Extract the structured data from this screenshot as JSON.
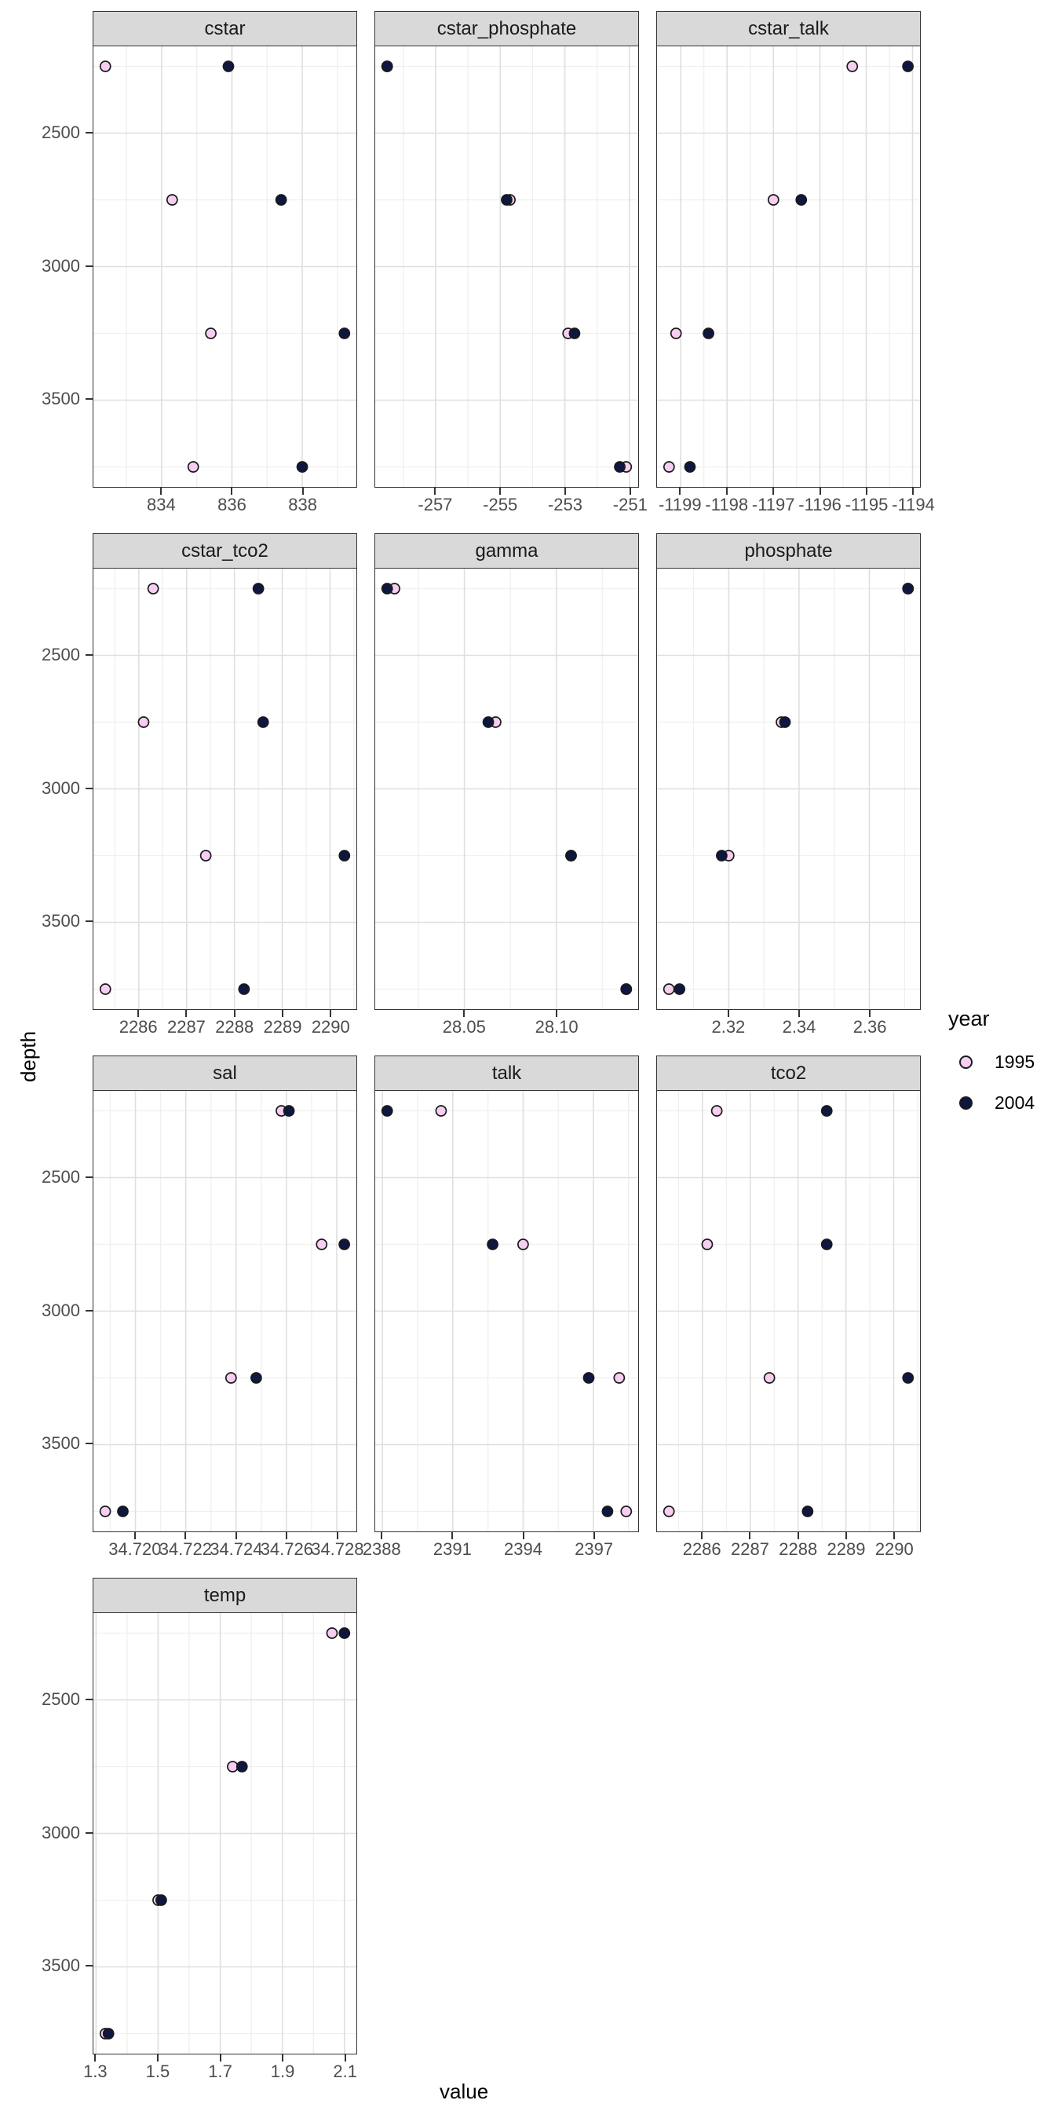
{
  "axis": {
    "x_label": "value",
    "y_label": "depth"
  },
  "legend": {
    "title": "year",
    "items": [
      {
        "label": "1995",
        "fill": "#F7CEF2"
      },
      {
        "label": "2004",
        "fill": "#0D173F"
      }
    ]
  },
  "style": {
    "point_stroke": "#1A1A1A",
    "strip_bg": "#D9D9D9",
    "panel_border": "#333333",
    "grid_major": "#DFDFDF",
    "grid_minor": "#EFEFEF",
    "tick_label_color": "#4D4D4D",
    "tick_mark_color": "#333333"
  },
  "chart_data": {
    "type": "scatter",
    "title": "",
    "xlabel": "value",
    "ylabel": "depth",
    "legend_position": "right",
    "grid": "on",
    "y_axis": {
      "reversed": true,
      "range": [
        2175,
        3825
      ],
      "ticks": {
        "values": [
          2500,
          3000,
          3500
        ],
        "labels": [
          "2500",
          "3000",
          "3500"
        ]
      },
      "minor": [
        2250,
        2750,
        3250,
        3750
      ]
    },
    "series_names": [
      "1995",
      "2004"
    ],
    "rows": [
      [
        "cstar",
        "cstar_phosphate",
        "cstar_talk"
      ],
      [
        "cstar_tco2",
        "gamma",
        "phosphate"
      ],
      [
        "sal",
        "talk",
        "tco2"
      ],
      [
        "temp"
      ]
    ],
    "facets": [
      {
        "name": "cstar",
        "x_range": [
          832.06,
          839.54
        ],
        "x_ticks": {
          "values": [
            834,
            836,
            838
          ],
          "labels": [
            "834",
            "836",
            "838"
          ]
        },
        "series": {
          "1995": [
            [
              832.4,
              2250
            ],
            [
              834.3,
              2750
            ],
            [
              835.4,
              3250
            ],
            [
              834.9,
              3750
            ]
          ],
          "2004": [
            [
              835.9,
              2250
            ],
            [
              837.4,
              2750
            ],
            [
              839.2,
              3250
            ],
            [
              838.0,
              3750
            ]
          ]
        }
      },
      {
        "name": "cstar_phosphate",
        "x_range": [
          -258.87,
          -250.73
        ],
        "x_ticks": {
          "values": [
            -257,
            -255,
            -253,
            -251
          ],
          "labels": [
            "-257",
            "-255",
            "-253",
            "-251"
          ]
        },
        "series": {
          "1995": [
            [
              -258.5,
              2250
            ],
            [
              -254.7,
              2750
            ],
            [
              -252.9,
              3250
            ],
            [
              -251.1,
              3750
            ]
          ],
          "2004": [
            [
              -258.5,
              2250
            ],
            [
              -254.8,
              2750
            ],
            [
              -252.7,
              3250
            ],
            [
              -251.3,
              3750
            ]
          ]
        }
      },
      {
        "name": "cstar_talk",
        "x_range": [
          -1199.51,
          -1193.84
        ],
        "x_ticks": {
          "values": [
            -1199,
            -1198,
            -1197,
            -1196,
            -1195,
            -1194
          ],
          "labels": [
            "-1199",
            "-1198",
            "-1197",
            "-1196",
            "-1195",
            "-1194"
          ]
        },
        "series": {
          "1995": [
            [
              -1195.3,
              2250
            ],
            [
              -1197.0,
              2750
            ],
            [
              -1199.1,
              3250
            ],
            [
              -1199.25,
              3750
            ]
          ],
          "2004": [
            [
              -1194.1,
              2250
            ],
            [
              -1196.4,
              2750
            ],
            [
              -1198.4,
              3250
            ],
            [
              -1198.8,
              3750
            ]
          ]
        }
      },
      {
        "name": "cstar_tco2",
        "x_range": [
          2285.05,
          2290.55
        ],
        "x_ticks": {
          "values": [
            2286,
            2287,
            2288,
            2289,
            2290
          ],
          "labels": [
            "2286",
            "2287",
            "2288",
            "2289",
            "2290"
          ]
        },
        "series": {
          "1995": [
            [
              2286.3,
              2250
            ],
            [
              2286.1,
              2750
            ],
            [
              2287.4,
              3250
            ],
            [
              2285.3,
              3750
            ]
          ],
          "2004": [
            [
              2288.5,
              2250
            ],
            [
              2288.6,
              2750
            ],
            [
              2290.3,
              3250
            ],
            [
              2288.2,
              3750
            ]
          ]
        }
      },
      {
        "name": "gamma",
        "x_range": [
          28.0015,
          28.1445
        ],
        "x_ticks": {
          "values": [
            28.05,
            28.1
          ],
          "labels": [
            "28.05",
            "28.10"
          ]
        },
        "series": {
          "1995": [
            [
              28.012,
              2250
            ],
            [
              28.067,
              2750
            ],
            [
              28.108,
              3250
            ],
            [
              28.138,
              3750
            ]
          ],
          "2004": [
            [
              28.008,
              2250
            ],
            [
              28.063,
              2750
            ],
            [
              28.108,
              3250
            ],
            [
              28.138,
              3750
            ]
          ]
        }
      },
      {
        "name": "phosphate",
        "x_range": [
          2.2996,
          2.3744
        ],
        "x_ticks": {
          "values": [
            2.32,
            2.34,
            2.36
          ],
          "labels": [
            "2.32",
            "2.34",
            "2.36"
          ]
        },
        "series": {
          "1995": [
            [
              2.371,
              2250
            ],
            [
              2.335,
              2750
            ],
            [
              2.32,
              3250
            ],
            [
              2.303,
              3750
            ]
          ],
          "2004": [
            [
              2.371,
              2250
            ],
            [
              2.336,
              2750
            ],
            [
              2.318,
              3250
            ],
            [
              2.306,
              3750
            ]
          ]
        }
      },
      {
        "name": "sal",
        "x_range": [
          34.71833,
          34.72878
        ],
        "x_ticks": {
          "values": [
            34.72,
            34.722,
            34.724,
            34.726,
            34.728
          ],
          "labels": [
            "34.720",
            "34.722",
            "34.724",
            "34.726",
            "34.728"
          ]
        },
        "series": {
          "1995": [
            [
              34.7258,
              2250
            ],
            [
              34.7274,
              2750
            ],
            [
              34.7238,
              3250
            ],
            [
              34.7188,
              3750
            ]
          ],
          "2004": [
            [
              34.7261,
              2250
            ],
            [
              34.7283,
              2750
            ],
            [
              34.7248,
              3250
            ],
            [
              34.7195,
              3750
            ]
          ]
        }
      },
      {
        "name": "talk",
        "x_range": [
          2387.69,
          2398.91
        ],
        "x_ticks": {
          "values": [
            2388,
            2391,
            2394,
            2397
          ],
          "labels": [
            "2388",
            "2391",
            "2394",
            "2397"
          ]
        },
        "series": {
          "1995": [
            [
              2390.5,
              2250
            ],
            [
              2394.0,
              2750
            ],
            [
              2398.1,
              3250
            ],
            [
              2398.4,
              3750
            ]
          ],
          "2004": [
            [
              2388.2,
              2250
            ],
            [
              2392.7,
              2750
            ],
            [
              2396.8,
              3250
            ],
            [
              2397.6,
              3750
            ]
          ]
        }
      },
      {
        "name": "tco2",
        "x_range": [
          2285.05,
          2290.55
        ],
        "x_ticks": {
          "values": [
            2286,
            2287,
            2288,
            2289,
            2290
          ],
          "labels": [
            "2286",
            "2287",
            "2288",
            "2289",
            "2290"
          ]
        },
        "series": {
          "1995": [
            [
              2286.3,
              2250
            ],
            [
              2286.1,
              2750
            ],
            [
              2287.4,
              3250
            ],
            [
              2285.3,
              3750
            ]
          ],
          "2004": [
            [
              2288.6,
              2250
            ],
            [
              2288.6,
              2750
            ],
            [
              2290.3,
              3250
            ],
            [
              2288.2,
              3750
            ]
          ]
        }
      },
      {
        "name": "temp",
        "x_range": [
          1.2915,
          2.1385
        ],
        "x_ticks": {
          "values": [
            1.3,
            1.5,
            1.7,
            1.9,
            2.1
          ],
          "labels": [
            "1.3",
            "1.5",
            "1.7",
            "1.9",
            "2.1"
          ]
        },
        "series": {
          "1995": [
            [
              2.06,
              2250
            ],
            [
              1.74,
              2750
            ],
            [
              1.5,
              3250
            ],
            [
              1.33,
              3750
            ]
          ],
          "2004": [
            [
              2.1,
              2250
            ],
            [
              1.77,
              2750
            ],
            [
              1.51,
              3250
            ],
            [
              1.34,
              3750
            ]
          ]
        }
      }
    ]
  }
}
